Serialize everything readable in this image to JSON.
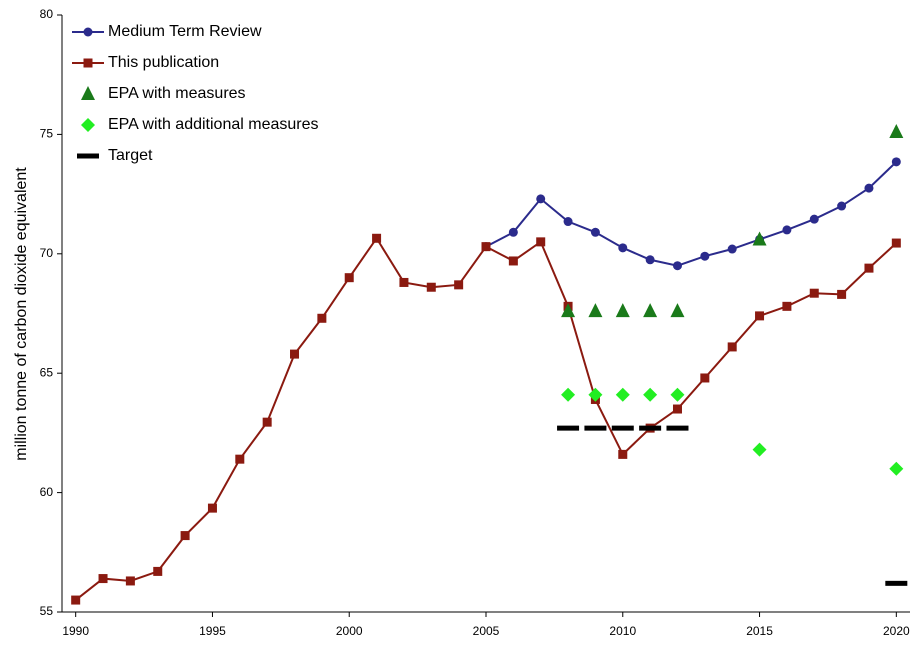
{
  "chart_data": {
    "type": "line",
    "y_label": "million tonne of carbon dioxide equivalent",
    "x": [
      1990,
      1991,
      1992,
      1993,
      1994,
      1995,
      1996,
      1997,
      1998,
      1999,
      2000,
      2001,
      2002,
      2003,
      2004,
      2005,
      2006,
      2007,
      2008,
      2009,
      2010,
      2011,
      2012,
      2013,
      2014,
      2015,
      2016,
      2017,
      2018,
      2019,
      2020
    ],
    "series": [
      {
        "name": "Medium Term Review",
        "color": "#2b2b8c",
        "marker": "circle",
        "line": true,
        "values": [
          null,
          null,
          null,
          null,
          null,
          null,
          null,
          null,
          null,
          null,
          null,
          null,
          null,
          null,
          null,
          70.3,
          70.9,
          72.3,
          71.35,
          70.9,
          70.25,
          69.75,
          69.5,
          69.9,
          70.2,
          70.6,
          71.0,
          71.45,
          72.0,
          72.75,
          73.85
        ]
      },
      {
        "name": "This publication",
        "color": "#8b1a10",
        "marker": "square",
        "line": true,
        "values": [
          55.5,
          56.4,
          56.3,
          56.7,
          58.2,
          59.35,
          61.4,
          62.95,
          65.8,
          67.3,
          69.0,
          70.65,
          68.8,
          68.6,
          68.7,
          70.3,
          69.7,
          70.5,
          67.8,
          63.9,
          61.6,
          62.7,
          63.5,
          64.8,
          66.1,
          67.4,
          67.8,
          68.35,
          68.3,
          69.4,
          70.45
        ]
      },
      {
        "name": "EPA with measures",
        "color": "#1a7a1a",
        "marker": "triangle",
        "line": false,
        "values": [
          null,
          null,
          null,
          null,
          null,
          null,
          null,
          null,
          null,
          null,
          null,
          null,
          null,
          null,
          null,
          null,
          null,
          null,
          67.6,
          67.6,
          67.6,
          67.6,
          67.6,
          null,
          null,
          70.6,
          null,
          null,
          null,
          null,
          75.1
        ]
      },
      {
        "name": "EPA with additional measures",
        "color": "#22ee22",
        "marker": "diamond",
        "line": false,
        "values": [
          null,
          null,
          null,
          null,
          null,
          null,
          null,
          null,
          null,
          null,
          null,
          null,
          null,
          null,
          null,
          null,
          null,
          null,
          64.1,
          64.1,
          64.1,
          64.1,
          64.1,
          null,
          null,
          61.8,
          null,
          null,
          null,
          null,
          61.0
        ]
      },
      {
        "name": "Target",
        "color": "#000000",
        "marker": "dash",
        "line": false,
        "values": [
          null,
          null,
          null,
          null,
          null,
          null,
          null,
          null,
          null,
          null,
          null,
          null,
          null,
          null,
          null,
          null,
          null,
          null,
          62.7,
          62.7,
          62.7,
          62.7,
          62.7,
          null,
          null,
          null,
          null,
          null,
          null,
          null,
          56.2
        ]
      }
    ],
    "xlim": [
      1989.5,
      2020.5
    ],
    "xticks": [
      1990,
      1995,
      2000,
      2005,
      2010,
      2015,
      2020
    ],
    "ylim": [
      55,
      80
    ],
    "yticks": [
      55,
      60,
      65,
      70,
      75,
      80
    ],
    "grid": false,
    "legend": "top-left"
  }
}
